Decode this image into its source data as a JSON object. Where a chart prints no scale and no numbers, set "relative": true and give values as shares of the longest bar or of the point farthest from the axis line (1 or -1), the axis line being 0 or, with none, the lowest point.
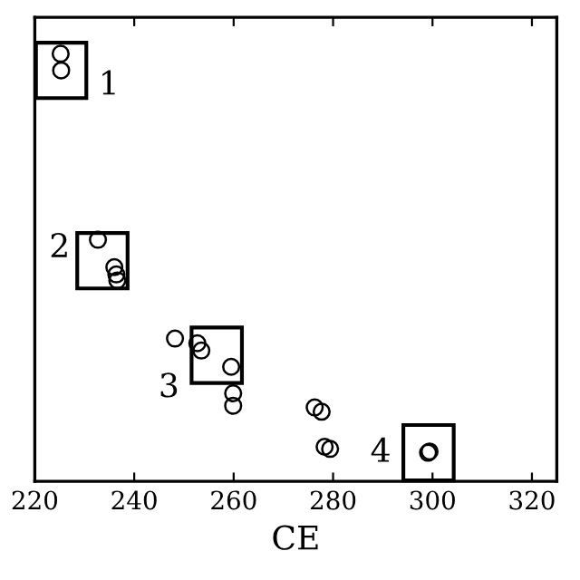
{
  "chart_data": {
    "type": "scatter",
    "xlabel": "CE",
    "relative": true,
    "marker": "circle",
    "grid": false,
    "legend": false,
    "x": [
      225.2,
      225.3,
      232.7,
      236.0,
      236.4,
      236.6,
      248.2,
      252.7,
      253.5,
      259.5,
      259.9,
      259.9,
      276.3,
      277.7,
      278.3,
      279.4,
      299.1,
      299.4
    ],
    "values": [
      1.0,
      0.961,
      0.565,
      0.501,
      0.484,
      0.47,
      0.334,
      0.323,
      0.306,
      0.268,
      0.206,
      0.177,
      0.173,
      0.163,
      0.081,
      0.076,
      0.067,
      0.07
    ],
    "color": "#000000",
    "xlim": [
      220,
      325
    ],
    "xticks": [
      220,
      240,
      260,
      280,
      300,
      320
    ],
    "annotations": [
      {
        "text": "1",
        "x": 225.3,
        "y": 0.961
      },
      {
        "text": "2",
        "x": 233.6,
        "y": 0.516
      },
      {
        "text": "3",
        "x": 256.6,
        "y": 0.295
      },
      {
        "text": "4",
        "x": 299.2,
        "y": 0.067
      }
    ]
  }
}
